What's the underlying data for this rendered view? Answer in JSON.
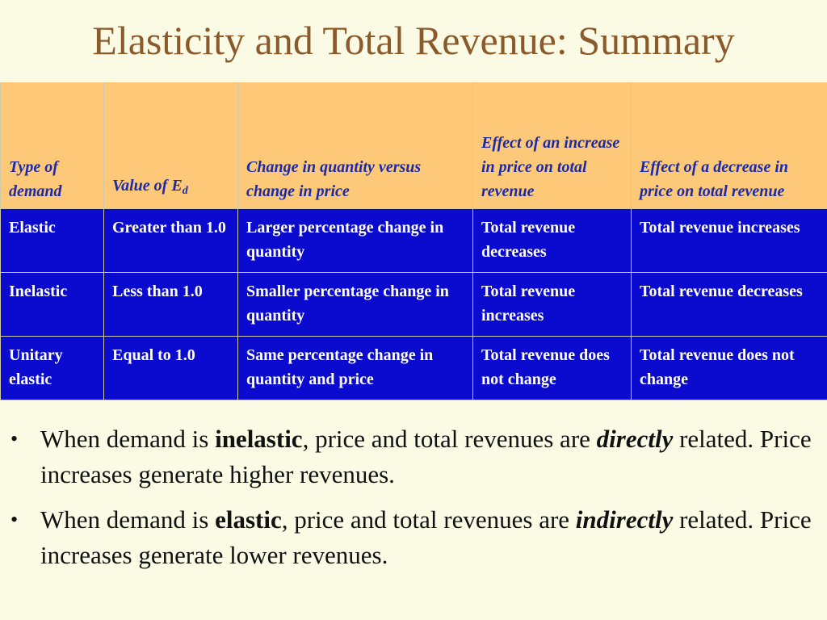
{
  "slide": {
    "title": "Elasticity and Total Revenue: Summary"
  },
  "table": {
    "headers": {
      "type": "Type of demand",
      "value_prefix": "Value of E",
      "value_sub": "d",
      "change": "Change in quantity versus change in price",
      "increase": "Effect of an increase in price on total revenue",
      "decrease": "Effect of a decrease in price on total revenue"
    },
    "rows": [
      {
        "type": "Elastic",
        "value": "Greater than 1.0",
        "change": "Larger percentage change in quantity",
        "increase": "Total revenue decreases",
        "decrease": "Total revenue increases"
      },
      {
        "type": "Inelastic",
        "value": "Less than 1.0",
        "change": "Smaller percentage change in quantity",
        "increase": "Total revenue increases",
        "decrease": "Total revenue decreases"
      },
      {
        "type": "Unitary elastic",
        "value": "Equal to 1.0",
        "change": "Same percentage change in quantity and price",
        "increase": "Total revenue does not change",
        "decrease": "Total revenue does not change"
      }
    ]
  },
  "bullets": [
    {
      "prefix": "When demand is ",
      "bold": "inelastic",
      "middle": ", price and total revenues are ",
      "bold_italic": "directly",
      "suffix": " related.   Price increases generate higher revenues."
    },
    {
      "prefix": "When demand is ",
      "bold": "elastic",
      "middle": ", price and total revenues are ",
      "bold_italic": "indirectly",
      "suffix": " related.  Price increases generate lower revenues."
    }
  ],
  "bullet_glyph": "•",
  "colors": {
    "background": "#fbfae4",
    "title": "#8b5a2b",
    "header_bg": "#fdc878",
    "header_text": "#1a2aa8",
    "row_bg": "#0b0bd0",
    "row_text": "#ffffff"
  }
}
